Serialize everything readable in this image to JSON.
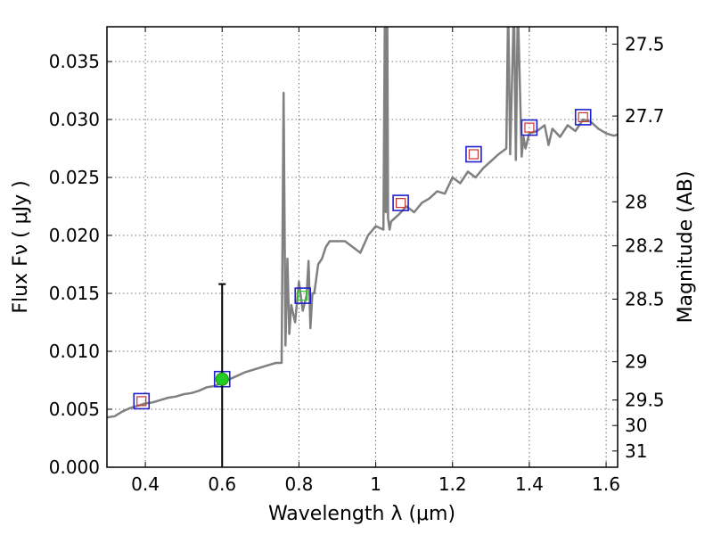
{
  "chart_data": {
    "type": "line",
    "title": "",
    "xlabel": "Wavelength  λ (μm)",
    "ylabel": "Flux  Fν  ( μJy )",
    "y2label": "Magnitude (AB)",
    "xlim": [
      0.3,
      1.63
    ],
    "ylim": [
      0.0,
      0.038
    ],
    "grid": true,
    "x_ticks": [
      0.4,
      0.6,
      0.8,
      1.0,
      1.2,
      1.4,
      1.6
    ],
    "x_tick_labels": [
      "0.4",
      "0.6",
      "0.8",
      "1",
      "1.2",
      "1.4",
      "1.6"
    ],
    "y_ticks": [
      0.0,
      0.005,
      0.01,
      0.015,
      0.02,
      0.025,
      0.03,
      0.035
    ],
    "y_tick_labels": [
      "0.000",
      "0.005",
      "0.010",
      "0.015",
      "0.020",
      "0.025",
      "0.030",
      "0.035"
    ],
    "y2_ticks": [
      {
        "flux": 0.0365,
        "label": "27.5"
      },
      {
        "flux": 0.0303,
        "label": "27.7"
      },
      {
        "flux": 0.0229,
        "label": "28"
      },
      {
        "flux": 0.0191,
        "label": "28.2"
      },
      {
        "flux": 0.0145,
        "label": "28.5"
      },
      {
        "flux": 0.0091,
        "label": "29"
      },
      {
        "flux": 0.0058,
        "label": "29.5"
      },
      {
        "flux": 0.0036,
        "label": "30"
      },
      {
        "flux": 0.0014,
        "label": "31"
      }
    ],
    "series": [
      {
        "style": "sed-line",
        "color": "#808080",
        "x": [
          0.3,
          0.32,
          0.34,
          0.36,
          0.38,
          0.4,
          0.42,
          0.44,
          0.46,
          0.48,
          0.5,
          0.52,
          0.54,
          0.56,
          0.58,
          0.6,
          0.62,
          0.64,
          0.66,
          0.68,
          0.7,
          0.72,
          0.74,
          0.755,
          0.76,
          0.765,
          0.77,
          0.775,
          0.78,
          0.79,
          0.8,
          0.81,
          0.82,
          0.825,
          0.83,
          0.835,
          0.84,
          0.85,
          0.86,
          0.87,
          0.88,
          0.9,
          0.92,
          0.94,
          0.96,
          0.98,
          1.0,
          1.02,
          1.024,
          1.026,
          1.028,
          1.03,
          1.032,
          1.036,
          1.04,
          1.06,
          1.08,
          1.1,
          1.12,
          1.14,
          1.16,
          1.18,
          1.2,
          1.22,
          1.24,
          1.26,
          1.28,
          1.3,
          1.32,
          1.34,
          1.345,
          1.35,
          1.36,
          1.365,
          1.37,
          1.38,
          1.385,
          1.39,
          1.4,
          1.42,
          1.44,
          1.45,
          1.46,
          1.48,
          1.5,
          1.52,
          1.54,
          1.56,
          1.58,
          1.6,
          1.62,
          1.63
        ],
        "y": [
          0.0043,
          0.0044,
          0.0048,
          0.0051,
          0.0053,
          0.0055,
          0.0056,
          0.0058,
          0.006,
          0.0061,
          0.0063,
          0.0064,
          0.0066,
          0.0069,
          0.007,
          0.0073,
          0.0076,
          0.0079,
          0.0082,
          0.0084,
          0.0086,
          0.0088,
          0.009,
          0.009,
          0.0323,
          0.0105,
          0.018,
          0.0115,
          0.014,
          0.0125,
          0.016,
          0.0135,
          0.0148,
          0.0178,
          0.012,
          0.015,
          0.015,
          0.0175,
          0.018,
          0.019,
          0.0195,
          0.0195,
          0.0195,
          0.019,
          0.0185,
          0.02,
          0.0208,
          0.0205,
          0.04,
          0.022,
          0.039,
          0.04,
          0.0215,
          0.0205,
          0.0212,
          0.0218,
          0.0225,
          0.022,
          0.0228,
          0.0232,
          0.0238,
          0.0236,
          0.025,
          0.0245,
          0.0255,
          0.025,
          0.0258,
          0.0264,
          0.027,
          0.0275,
          0.04,
          0.027,
          0.04,
          0.0265,
          0.04,
          0.0268,
          0.0285,
          0.0275,
          0.0288,
          0.029,
          0.0295,
          0.0278,
          0.0292,
          0.0285,
          0.0295,
          0.029,
          0.03,
          0.0298,
          0.0292,
          0.0288,
          0.0286,
          0.0287
        ]
      },
      {
        "style": "observed-point",
        "color": "#22cc22",
        "x": [
          0.6
        ],
        "y": [
          0.0076
        ],
        "yerr_upper": [
          0.0158
        ],
        "yerr_lower": [
          0.0
        ]
      }
    ],
    "model_photometry": [
      {
        "x": 0.39,
        "y": 0.0057
      },
      {
        "x": 0.6,
        "y": 0.0076
      },
      {
        "x": 0.81,
        "y": 0.0148
      },
      {
        "x": 1.065,
        "y": 0.0228
      },
      {
        "x": 1.255,
        "y": 0.027
      },
      {
        "x": 1.4,
        "y": 0.0293
      },
      {
        "x": 1.54,
        "y": 0.0302
      }
    ],
    "model_inner_colors": [
      "#cc3333",
      "#cc3333",
      "#33cc33",
      "#cc3333",
      "#cc3333",
      "#cc3333",
      "#cc3333"
    ]
  }
}
